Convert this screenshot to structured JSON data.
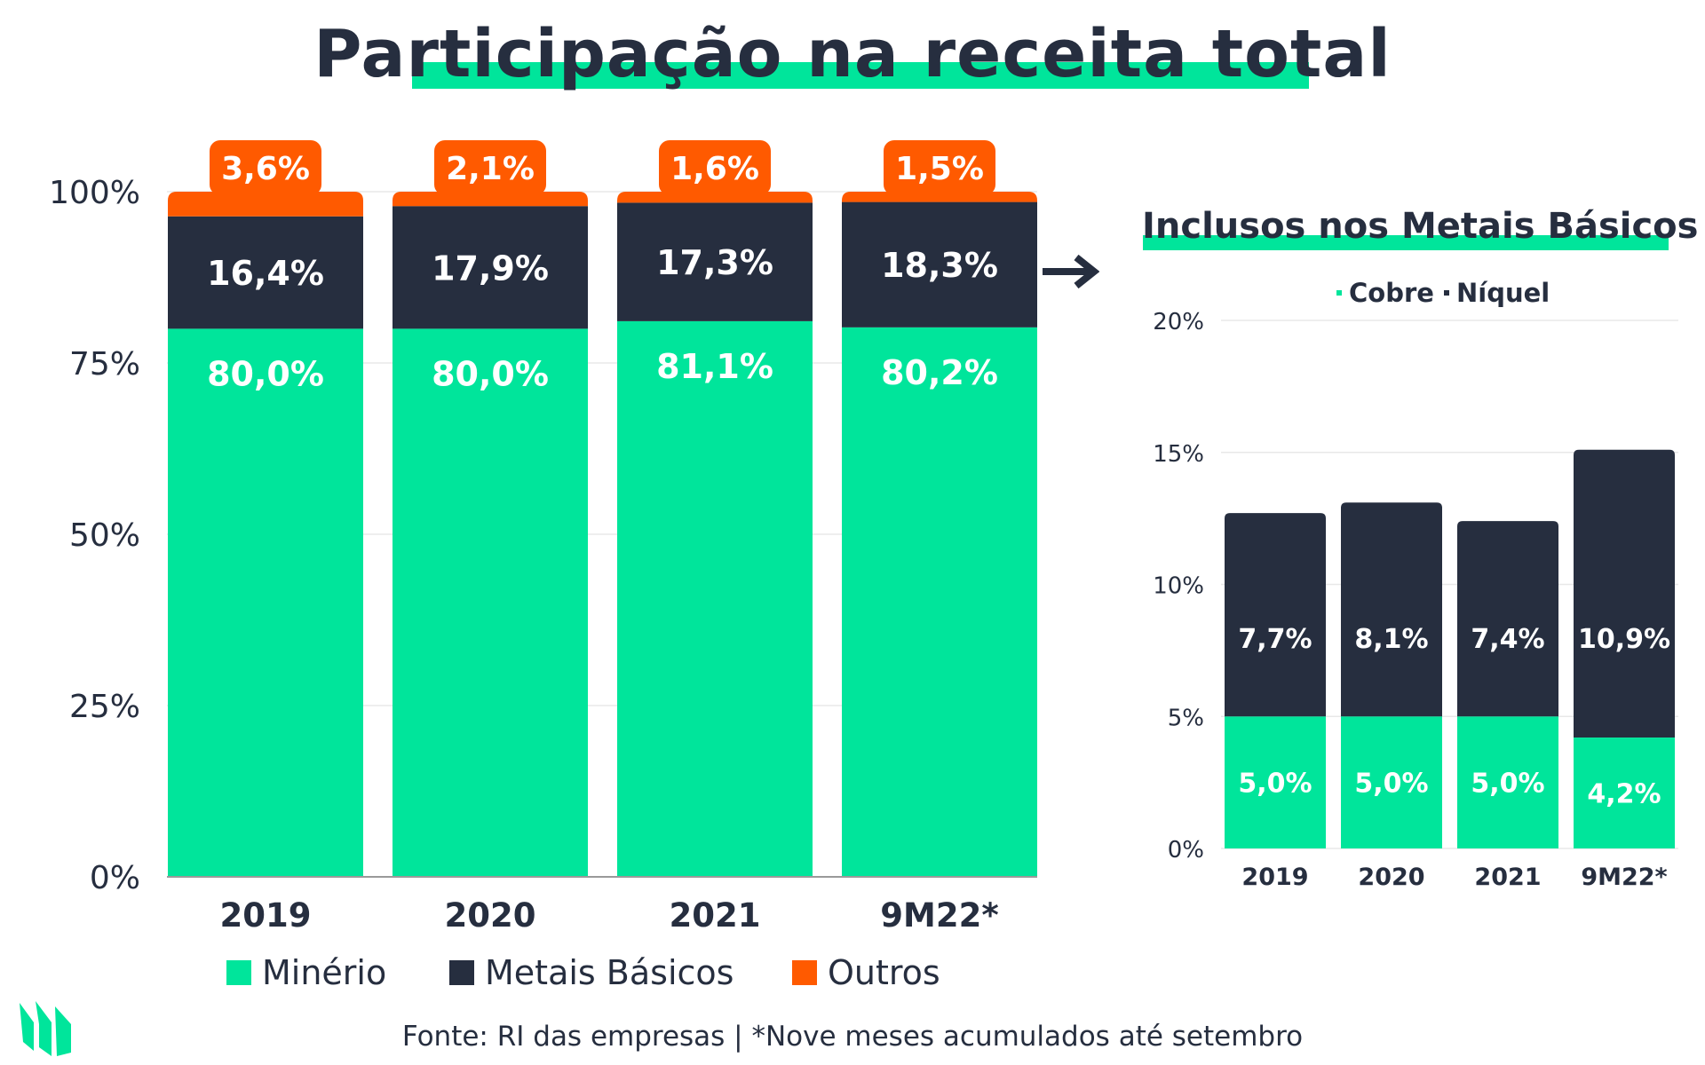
{
  "title": "Participação na receita total",
  "footer": "Fonte: RI das empresas | *Nove meses acumulados até setembro",
  "icons": {
    "arrow": "arrow-right-icon",
    "logo": "brand-logo-icon"
  },
  "colors": {
    "minerio": "#00e59b",
    "metais": "#262e3f",
    "outros": "#ff5a00",
    "cobre": "#00e59b",
    "niquel": "#262e3f",
    "grid": "#e8e8e8",
    "accent": "#00e59b"
  },
  "legend": {
    "main": [
      "Minério",
      "Metais Básicos",
      "Outros"
    ],
    "side": [
      "Cobre",
      "Níquel"
    ]
  },
  "side_title": "Inclusos nos Metais Básicos",
  "chart_data": [
    {
      "type": "bar",
      "stacked": true,
      "title": "Participação na receita total",
      "categories": [
        "2019",
        "2020",
        "2021",
        "9M22*"
      ],
      "yticks": [
        "0%",
        "25%",
        "50%",
        "75%",
        "100%"
      ],
      "ylim": [
        0,
        100
      ],
      "series": [
        {
          "name": "Minério",
          "values": [
            80.0,
            80.0,
            81.1,
            80.2
          ],
          "labels": [
            "80,0%",
            "80,0%",
            "81,1%",
            "80,2%"
          ]
        },
        {
          "name": "Metais Básicos",
          "values": [
            16.4,
            17.9,
            17.3,
            18.3
          ],
          "labels": [
            "16,4%",
            "17,9%",
            "17,3%",
            "18,3%"
          ]
        },
        {
          "name": "Outros",
          "values": [
            3.6,
            2.1,
            1.6,
            1.5
          ],
          "labels": [
            "3,6%",
            "2,1%",
            "1,6%",
            "1,5%"
          ]
        }
      ],
      "legend_position": "bottom",
      "grid": true
    },
    {
      "type": "bar",
      "stacked": true,
      "title": "Inclusos nos Metais Básicos",
      "categories": [
        "2019",
        "2020",
        "2021",
        "9M22*"
      ],
      "yticks": [
        "0%",
        "5%",
        "10%",
        "15%",
        "20%"
      ],
      "ylim": [
        0,
        20
      ],
      "series": [
        {
          "name": "Cobre",
          "values": [
            5.0,
            5.0,
            5.0,
            4.2
          ],
          "labels": [
            "5,0%",
            "5,0%",
            "5,0%",
            "4,2%"
          ]
        },
        {
          "name": "Níquel",
          "values": [
            7.7,
            8.1,
            7.4,
            10.9
          ],
          "labels": [
            "7,7%",
            "8,1%",
            "7,4%",
            "10,9%"
          ]
        }
      ],
      "legend_position": "top",
      "grid": true
    }
  ]
}
